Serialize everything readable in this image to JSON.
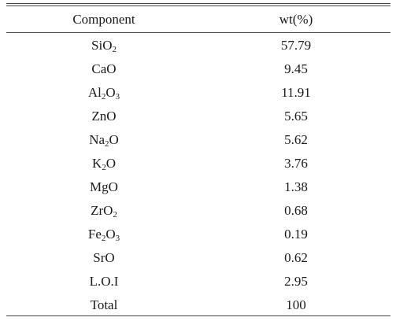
{
  "table": {
    "headers": {
      "component": "Component",
      "wt": "wt(%)"
    },
    "rows": [
      {
        "parts": [
          {
            "t": "SiO"
          },
          {
            "s": "2"
          }
        ],
        "value": "57.79"
      },
      {
        "parts": [
          {
            "t": "CaO"
          }
        ],
        "value": "9.45"
      },
      {
        "parts": [
          {
            "t": "Al"
          },
          {
            "s": "2"
          },
          {
            "t": "O"
          },
          {
            "s": "3"
          }
        ],
        "value": "11.91"
      },
      {
        "parts": [
          {
            "t": "ZnO"
          }
        ],
        "value": "5.65"
      },
      {
        "parts": [
          {
            "t": "Na"
          },
          {
            "s": "2"
          },
          {
            "t": "O"
          }
        ],
        "value": "5.62"
      },
      {
        "parts": [
          {
            "t": "K"
          },
          {
            "s": "2"
          },
          {
            "t": "O"
          }
        ],
        "value": "3.76"
      },
      {
        "parts": [
          {
            "t": "MgO"
          }
        ],
        "value": "1.38"
      },
      {
        "parts": [
          {
            "t": "ZrO"
          },
          {
            "s": "2"
          }
        ],
        "value": "0.68"
      },
      {
        "parts": [
          {
            "t": "Fe"
          },
          {
            "s": "2"
          },
          {
            "t": "O"
          },
          {
            "s": "3"
          }
        ],
        "value": "0.19"
      },
      {
        "parts": [
          {
            "t": "SrO"
          }
        ],
        "value": "0.62"
      },
      {
        "parts": [
          {
            "t": "L.O.I"
          }
        ],
        "value": "2.95"
      },
      {
        "parts": [
          {
            "t": "Total"
          }
        ],
        "value": "100"
      }
    ]
  }
}
